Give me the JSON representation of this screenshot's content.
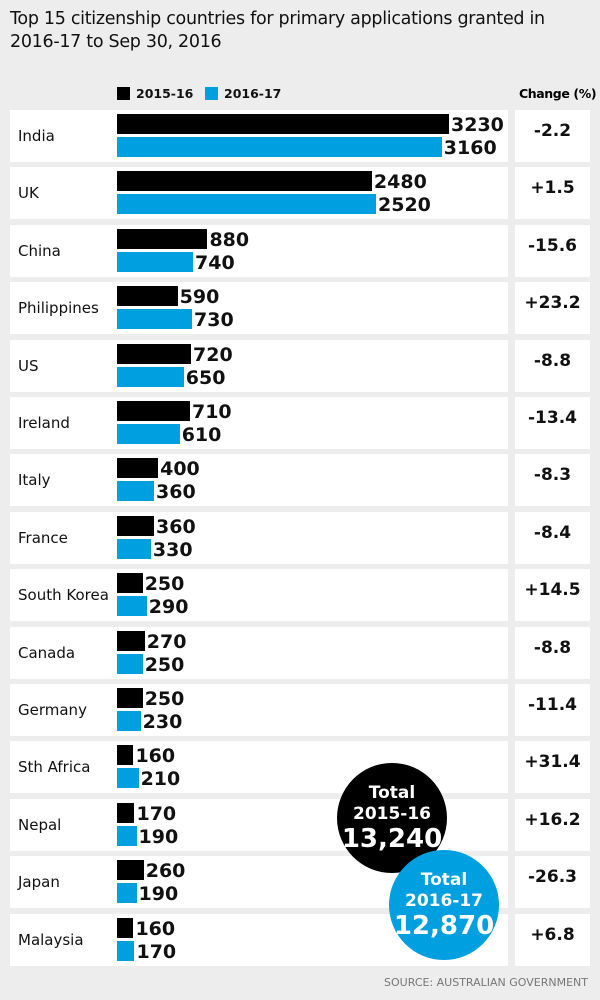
{
  "chart_data": {
    "type": "bar",
    "orientation": "horizontal",
    "title": "Top 15 citizenship countries for primary applications granted in 2016-17 to Sep 30, 2016",
    "categories": [
      "India",
      "UK",
      "China",
      "Philippines",
      "US",
      "Ireland",
      "Italy",
      "France",
      "South Korea",
      "Canada",
      "Germany",
      "Sth Africa",
      "Nepal",
      "Japan",
      "Malaysia"
    ],
    "series": [
      {
        "name": "2015-16",
        "color": "#000000",
        "values": [
          3230,
          2480,
          880,
          590,
          720,
          710,
          400,
          360,
          250,
          270,
          250,
          160,
          170,
          260,
          160
        ]
      },
      {
        "name": "2016-17",
        "color": "#009fe0",
        "values": [
          3160,
          2520,
          740,
          730,
          650,
          610,
          360,
          330,
          290,
          250,
          230,
          210,
          190,
          190,
          170
        ]
      }
    ],
    "change_header": "Change (%)",
    "change": [
      "-2.2",
      "+1.5",
      "-15.6",
      "+23.2",
      "-8.8",
      "-13.4",
      "-8.3",
      "-8.4",
      "+14.5",
      "-8.8",
      "-11.4",
      "+31.4",
      "+16.2",
      "-26.3",
      "+6.8"
    ],
    "totals": [
      {
        "label": "Total",
        "period": "2015-16",
        "value": "13,240",
        "color": "#000000"
      },
      {
        "label": "Total",
        "period": "2016-17",
        "value": "12,870",
        "color": "#009fe0"
      }
    ],
    "source": "SOURCE: AUSTRALIAN GOVERNMENT"
  }
}
